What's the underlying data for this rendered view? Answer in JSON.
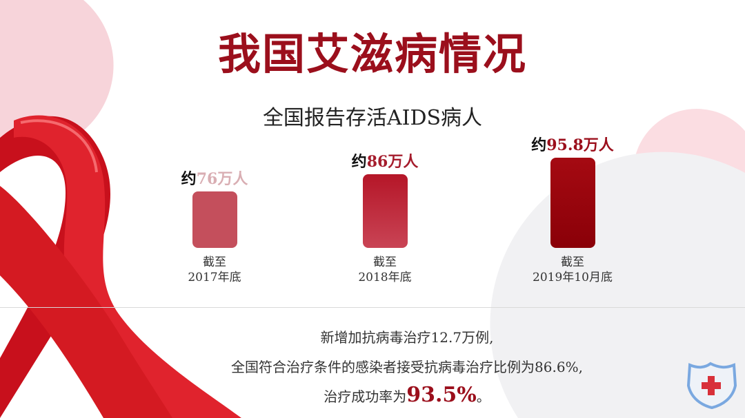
{
  "title": "我国艾滋病情况",
  "chart_data": {
    "type": "bar",
    "title": "全国报告存活AIDS病人",
    "categories": [
      "截至\n2017年底",
      "截至\n2018年底",
      "截至\n2019年10月底"
    ],
    "category_lines": [
      [
        "截至",
        "2017年底"
      ],
      [
        "截至",
        "2018年底"
      ],
      [
        "截至",
        "2019年10月底"
      ]
    ],
    "values": [
      76,
      86,
      95.8
    ],
    "unit": "万人",
    "data_labels": [
      {
        "prefix": "约",
        "value": "76",
        "suffix": "万人"
      },
      {
        "prefix": "约",
        "value": "86",
        "suffix": "万人"
      },
      {
        "prefix": "约",
        "value": "95.8",
        "suffix": "万人"
      }
    ],
    "bar_colors": [
      [
        "#c44f5c",
        "#c44f5c"
      ],
      [
        "#b51628",
        "#c94455"
      ],
      [
        "#a50a12",
        "#8a0008"
      ]
    ],
    "label_colors": [
      "#d9aeb3",
      "#a51c2c",
      "#9b0f1c"
    ],
    "grid": false
  },
  "notes": {
    "line1": "新增加抗病毒治疗12.7万例,",
    "line2": "全国符合治疗条件的感染者接受抗病毒治疗比例为86.6%,",
    "line3_prefix": "治疗成功率为",
    "line3_value": "93.5%",
    "line3_suffix": "。"
  },
  "icons": {
    "ribbon": "red-ribbon-icon",
    "shield": "medical-shield-icon"
  }
}
